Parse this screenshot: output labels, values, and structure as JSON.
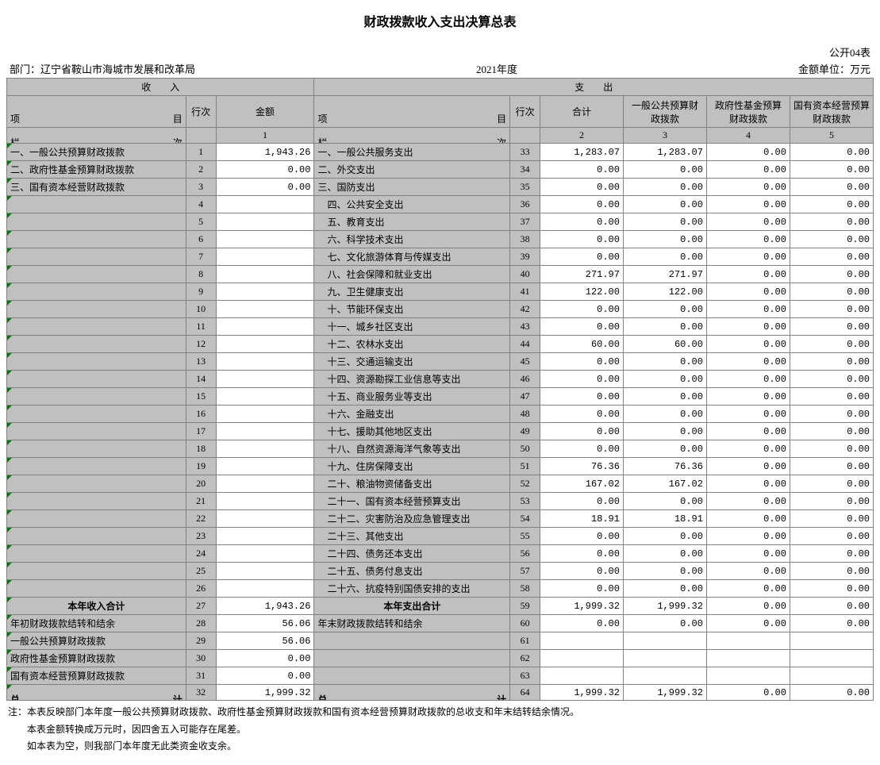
{
  "title": "财政拨款收入支出决算总表",
  "table_code": "公开04表",
  "dept_label": "部门：",
  "dept_name": "辽宁省鞍山市海城市发展和改革局",
  "year": "2021年度",
  "unit_label": "金额单位：万元",
  "section_income_label_l": "收",
  "section_income_label_r": "入",
  "section_exp_label_l": "支",
  "section_exp_label_r": "出",
  "header_item_l": "项",
  "header_item_r": "目",
  "header_rowno": "行次",
  "header_amount": "金额",
  "header_total": "合计",
  "header_col3": "一般公共预算财政拨款",
  "header_col4": "政府性基金预算财政拨款",
  "header_col5": "国有资本经营预算财政拨款",
  "lan_l": "栏",
  "lan_r": "次",
  "col_nums": [
    "1",
    "2",
    "3",
    "4",
    "5"
  ],
  "income_rows": [
    {
      "label": "一、一般公共预算财政拨款",
      "no": "1",
      "amt": "1,943.26",
      "tri": true
    },
    {
      "label": "二、政府性基金预算财政拨款",
      "no": "2",
      "amt": "0.00",
      "tri": true
    },
    {
      "label": "三、国有资本经营财政拨款",
      "no": "3",
      "amt": "0.00",
      "tri": true
    },
    {
      "label": "",
      "no": "4",
      "amt": "",
      "tri": true
    },
    {
      "label": "",
      "no": "5",
      "amt": "",
      "tri": true
    },
    {
      "label": "",
      "no": "6",
      "amt": "",
      "tri": true
    },
    {
      "label": "",
      "no": "7",
      "amt": "",
      "tri": true
    },
    {
      "label": "",
      "no": "8",
      "amt": "",
      "tri": true
    },
    {
      "label": "",
      "no": "9",
      "amt": "",
      "tri": true
    },
    {
      "label": "",
      "no": "10",
      "amt": "",
      "tri": true
    },
    {
      "label": "",
      "no": "11",
      "amt": "",
      "tri": true
    },
    {
      "label": "",
      "no": "12",
      "amt": "",
      "tri": true
    },
    {
      "label": "",
      "no": "13",
      "amt": "",
      "tri": true
    },
    {
      "label": "",
      "no": "14",
      "amt": "",
      "tri": true
    },
    {
      "label": "",
      "no": "15",
      "amt": "",
      "tri": true
    },
    {
      "label": "",
      "no": "16",
      "amt": "",
      "tri": true
    },
    {
      "label": "",
      "no": "17",
      "amt": "",
      "tri": true
    },
    {
      "label": "",
      "no": "18",
      "amt": "",
      "tri": true
    },
    {
      "label": "",
      "no": "19",
      "amt": "",
      "tri": true
    },
    {
      "label": "",
      "no": "20",
      "amt": "",
      "tri": true
    },
    {
      "label": "",
      "no": "21",
      "amt": "",
      "tri": true
    },
    {
      "label": "",
      "no": "22",
      "amt": "",
      "tri": true
    },
    {
      "label": "",
      "no": "23",
      "amt": "",
      "tri": true
    },
    {
      "label": "",
      "no": "24",
      "amt": "",
      "tri": true
    },
    {
      "label": "",
      "no": "25",
      "amt": "",
      "tri": true
    },
    {
      "label": "",
      "no": "26",
      "amt": "",
      "tri": true
    },
    {
      "label": "本年收入合计",
      "no": "27",
      "amt": "1,943.26",
      "tri": true,
      "bold": true,
      "center": true
    },
    {
      "label": "年初财政拨款结转和结余",
      "no": "28",
      "amt": "56.06",
      "tri": true
    },
    {
      "label": "  一般公共预算财政拨款",
      "no": "29",
      "amt": "56.06",
      "tri": true
    },
    {
      "label": "  政府性基金预算财政拨款",
      "no": "30",
      "amt": "0.00",
      "tri": true
    },
    {
      "label": "  国有资本经营预算财政拨款",
      "no": "31",
      "amt": "0.00",
      "tri": true
    },
    {
      "label_l": "总",
      "label_r": "计",
      "no": "32",
      "amt": "1,999.32",
      "tri": true,
      "bold": true
    }
  ],
  "exp_rows": [
    {
      "label": "一、一般公共服务支出",
      "no": "33",
      "v": [
        "1,283.07",
        "1,283.07",
        "0.00",
        "0.00"
      ]
    },
    {
      "label": "二、外交支出",
      "no": "34",
      "v": [
        "0.00",
        "0.00",
        "0.00",
        "0.00"
      ]
    },
    {
      "label": "三、国防支出",
      "no": "35",
      "v": [
        "0.00",
        "0.00",
        "0.00",
        "0.00"
      ]
    },
    {
      "label": "    四、公共安全支出",
      "no": "36",
      "v": [
        "0.00",
        "0.00",
        "0.00",
        "0.00"
      ]
    },
    {
      "label": "    五、教育支出",
      "no": "37",
      "v": [
        "0.00",
        "0.00",
        "0.00",
        "0.00"
      ]
    },
    {
      "label": "    六、科学技术支出",
      "no": "38",
      "v": [
        "0.00",
        "0.00",
        "0.00",
        "0.00"
      ]
    },
    {
      "label": "    七、文化旅游体育与传媒支出",
      "no": "39",
      "v": [
        "0.00",
        "0.00",
        "0.00",
        "0.00"
      ]
    },
    {
      "label": "    八、社会保障和就业支出",
      "no": "40",
      "v": [
        "271.97",
        "271.97",
        "0.00",
        "0.00"
      ]
    },
    {
      "label": "    九、卫生健康支出",
      "no": "41",
      "v": [
        "122.00",
        "122.00",
        "0.00",
        "0.00"
      ]
    },
    {
      "label": "    十、节能环保支出",
      "no": "42",
      "v": [
        "0.00",
        "0.00",
        "0.00",
        "0.00"
      ]
    },
    {
      "label": "    十一、城乡社区支出",
      "no": "43",
      "v": [
        "0.00",
        "0.00",
        "0.00",
        "0.00"
      ]
    },
    {
      "label": "    十二、农林水支出",
      "no": "44",
      "v": [
        "60.00",
        "60.00",
        "0.00",
        "0.00"
      ]
    },
    {
      "label": "    十三、交通运输支出",
      "no": "45",
      "v": [
        "0.00",
        "0.00",
        "0.00",
        "0.00"
      ]
    },
    {
      "label": "    十四、资源勘探工业信息等支出",
      "no": "46",
      "v": [
        "0.00",
        "0.00",
        "0.00",
        "0.00"
      ]
    },
    {
      "label": "    十五、商业服务业等支出",
      "no": "47",
      "v": [
        "0.00",
        "0.00",
        "0.00",
        "0.00"
      ]
    },
    {
      "label": "    十六、金融支出",
      "no": "48",
      "v": [
        "0.00",
        "0.00",
        "0.00",
        "0.00"
      ]
    },
    {
      "label": "    十七、援助其他地区支出",
      "no": "49",
      "v": [
        "0.00",
        "0.00",
        "0.00",
        "0.00"
      ]
    },
    {
      "label": "    十八、自然资源海洋气象等支出",
      "no": "50",
      "v": [
        "0.00",
        "0.00",
        "0.00",
        "0.00"
      ]
    },
    {
      "label": "    十九、住房保障支出",
      "no": "51",
      "v": [
        "76.36",
        "76.36",
        "0.00",
        "0.00"
      ]
    },
    {
      "label": "    二十、粮油物资储备支出",
      "no": "52",
      "v": [
        "167.02",
        "167.02",
        "0.00",
        "0.00"
      ]
    },
    {
      "label": "    二十一、国有资本经营预算支出",
      "no": "53",
      "v": [
        "0.00",
        "0.00",
        "0.00",
        "0.00"
      ]
    },
    {
      "label": "    二十二、灾害防治及应急管理支出",
      "no": "54",
      "v": [
        "18.91",
        "18.91",
        "0.00",
        "0.00"
      ]
    },
    {
      "label": "    二十三、其他支出",
      "no": "55",
      "v": [
        "0.00",
        "0.00",
        "0.00",
        "0.00"
      ]
    },
    {
      "label": "    二十四、债务还本支出",
      "no": "56",
      "v": [
        "0.00",
        "0.00",
        "0.00",
        "0.00"
      ]
    },
    {
      "label": "    二十五、债务付息支出",
      "no": "57",
      "v": [
        "0.00",
        "0.00",
        "0.00",
        "0.00"
      ]
    },
    {
      "label": "    二十六、抗疫特别国债安排的支出",
      "no": "58",
      "v": [
        "0.00",
        "0.00",
        "0.00",
        "0.00"
      ]
    },
    {
      "label": "本年支出合计",
      "no": "59",
      "v": [
        "1,999.32",
        "1,999.32",
        "0.00",
        "0.00"
      ],
      "bold": true,
      "center": true
    },
    {
      "label": "年末财政拨款结转和结余",
      "no": "60",
      "v": [
        "0.00",
        "0.00",
        "0.00",
        "0.00"
      ]
    },
    {
      "label": "",
      "no": "61",
      "v": [
        "",
        "",
        "",
        ""
      ]
    },
    {
      "label": "",
      "no": "62",
      "v": [
        "",
        "",
        "",
        ""
      ]
    },
    {
      "label": "",
      "no": "63",
      "v": [
        "",
        "",
        "",
        ""
      ]
    },
    {
      "label_l": "总",
      "label_r": "计",
      "no": "64",
      "v": [
        "1,999.32",
        "1,999.32",
        "0.00",
        "0.00"
      ],
      "bold": true
    }
  ],
  "notes": [
    "注：本表反映部门本年度一般公共预算财政拨款、政府性基金预算财政拨款和国有资本经营预算财政拨款的总收支和年末结转结余情况。",
    "　　本表金额转换成万元时，因四舍五入可能存在尾差。",
    "　　如本表为空，则我部门本年度无此类资金收支余。"
  ],
  "colors": {
    "header_bg": "#c0c0c0",
    "border": "#808080",
    "triangle": "#008000"
  }
}
